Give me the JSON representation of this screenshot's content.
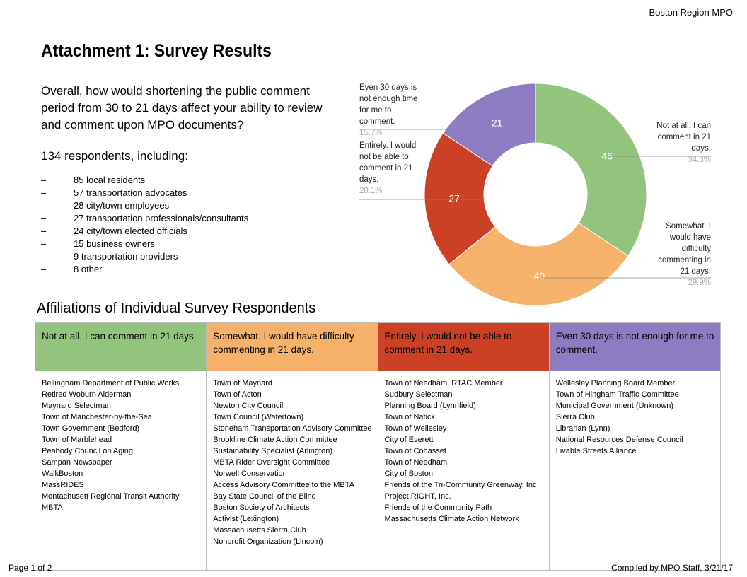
{
  "header": {
    "org": "Boston Region MPO"
  },
  "title": "Attachment 1: Survey Results",
  "question": "Overall, how would shortening the public comment period from 30 to 21 days affect your ability to review and comment upon MPO documents?",
  "respondents": "134 respondents, including:",
  "groups": [
    "85 local residents",
    "57 transportation advocates",
    "28 city/town employees",
    "27 transportation professionals/consultants",
    "24 city/town elected officials",
    "15 business owners",
    "9 transportation providers",
    "8 other"
  ],
  "bullet": "–",
  "chart_data": {
    "type": "pie",
    "donut": true,
    "categories": [
      "Not at all. I can comment in 21 days.",
      "Somewhat. I would have difficulty commenting in 21 days.",
      "Entirely. I would not be able to comment in 21 days.",
      "Even 30 days is not enough time for me to comment."
    ],
    "values": [
      46,
      40,
      27,
      21
    ],
    "percent_labels": [
      "34.3%",
      "29.9%",
      "20.1%",
      "15.7%"
    ],
    "colors": [
      "#93c47d",
      "#f6b26b",
      "#cc4125",
      "#8e7cc3"
    ]
  },
  "affiliations": {
    "title": "Affiliations of Individual Survey Respondents",
    "columns": [
      {
        "header": "Not at all. I can comment in 21 days.",
        "color": "#93c47d",
        "items": [
          "Bellingham Department of Public Works",
          "Retired Woburn Alderman",
          "Maynard Selectman",
          "Town of Manchester-by-the-Sea",
          "Town Government (Bedford)",
          "Town of Marblehead",
          "Peabody Council on Aging",
          "Sampan Newspaper",
          "WalkBoston",
          "MassRIDES",
          "Montachusett Regional Transit Authority",
          "MBTA"
        ]
      },
      {
        "header": "Somewhat. I would have difficulty commenting in 21 days.",
        "color": "#f6b26b",
        "items": [
          "Town of Maynard",
          "Town of Acton",
          "Newton City Council",
          "Town Council (Watertown)",
          "Stoneham Transportation Advisory Committee",
          "Brookline Climate Action Committee",
          "Sustainability Specialist (Arlington)",
          "MBTA Rider Oversight Committee",
          "Norwell Conservation",
          "Access Advisory Committee to the MBTA",
          "Bay State Council of the Blind",
          "Boston Society of Architects",
          "Activist (Lexington)",
          "Massachusetts Sierra Club",
          "Nonprofit Organization (Lincoln)"
        ]
      },
      {
        "header": "Entirely. I would not be able to comment in 21 days.",
        "color": "#cc4125",
        "items": [
          "Town of Needham, RTAC Member",
          "Sudbury Selectman",
          "Planning Board (Lynnfield)",
          "Town of Natick",
          "Town of Wellesley",
          "City of Everett",
          "Town of Cohasset",
          "Town of Needham",
          "City of Boston",
          "Friends of the Tri-Community Greenway, Inc",
          "Project RIGHT, Inc.",
          "Friends of the Community Path",
          "Massachusetts Climate Action Network"
        ]
      },
      {
        "header": "Even 30 days is not enough for me to comment.",
        "color": "#8e7cc3",
        "items": [
          "Wellesley Planning Board Member",
          "Town of Hingham Traffic Committee",
          "Municipal Government (Unknown)",
          "Sierra Club",
          "Librarian (Lynn)",
          "National Resources Defense Council",
          "Livable Streets Alliance"
        ]
      }
    ]
  },
  "footer": {
    "page": "Page 1 of 2",
    "compiled": "Compiled by MPO Staff, 3/21/17"
  }
}
